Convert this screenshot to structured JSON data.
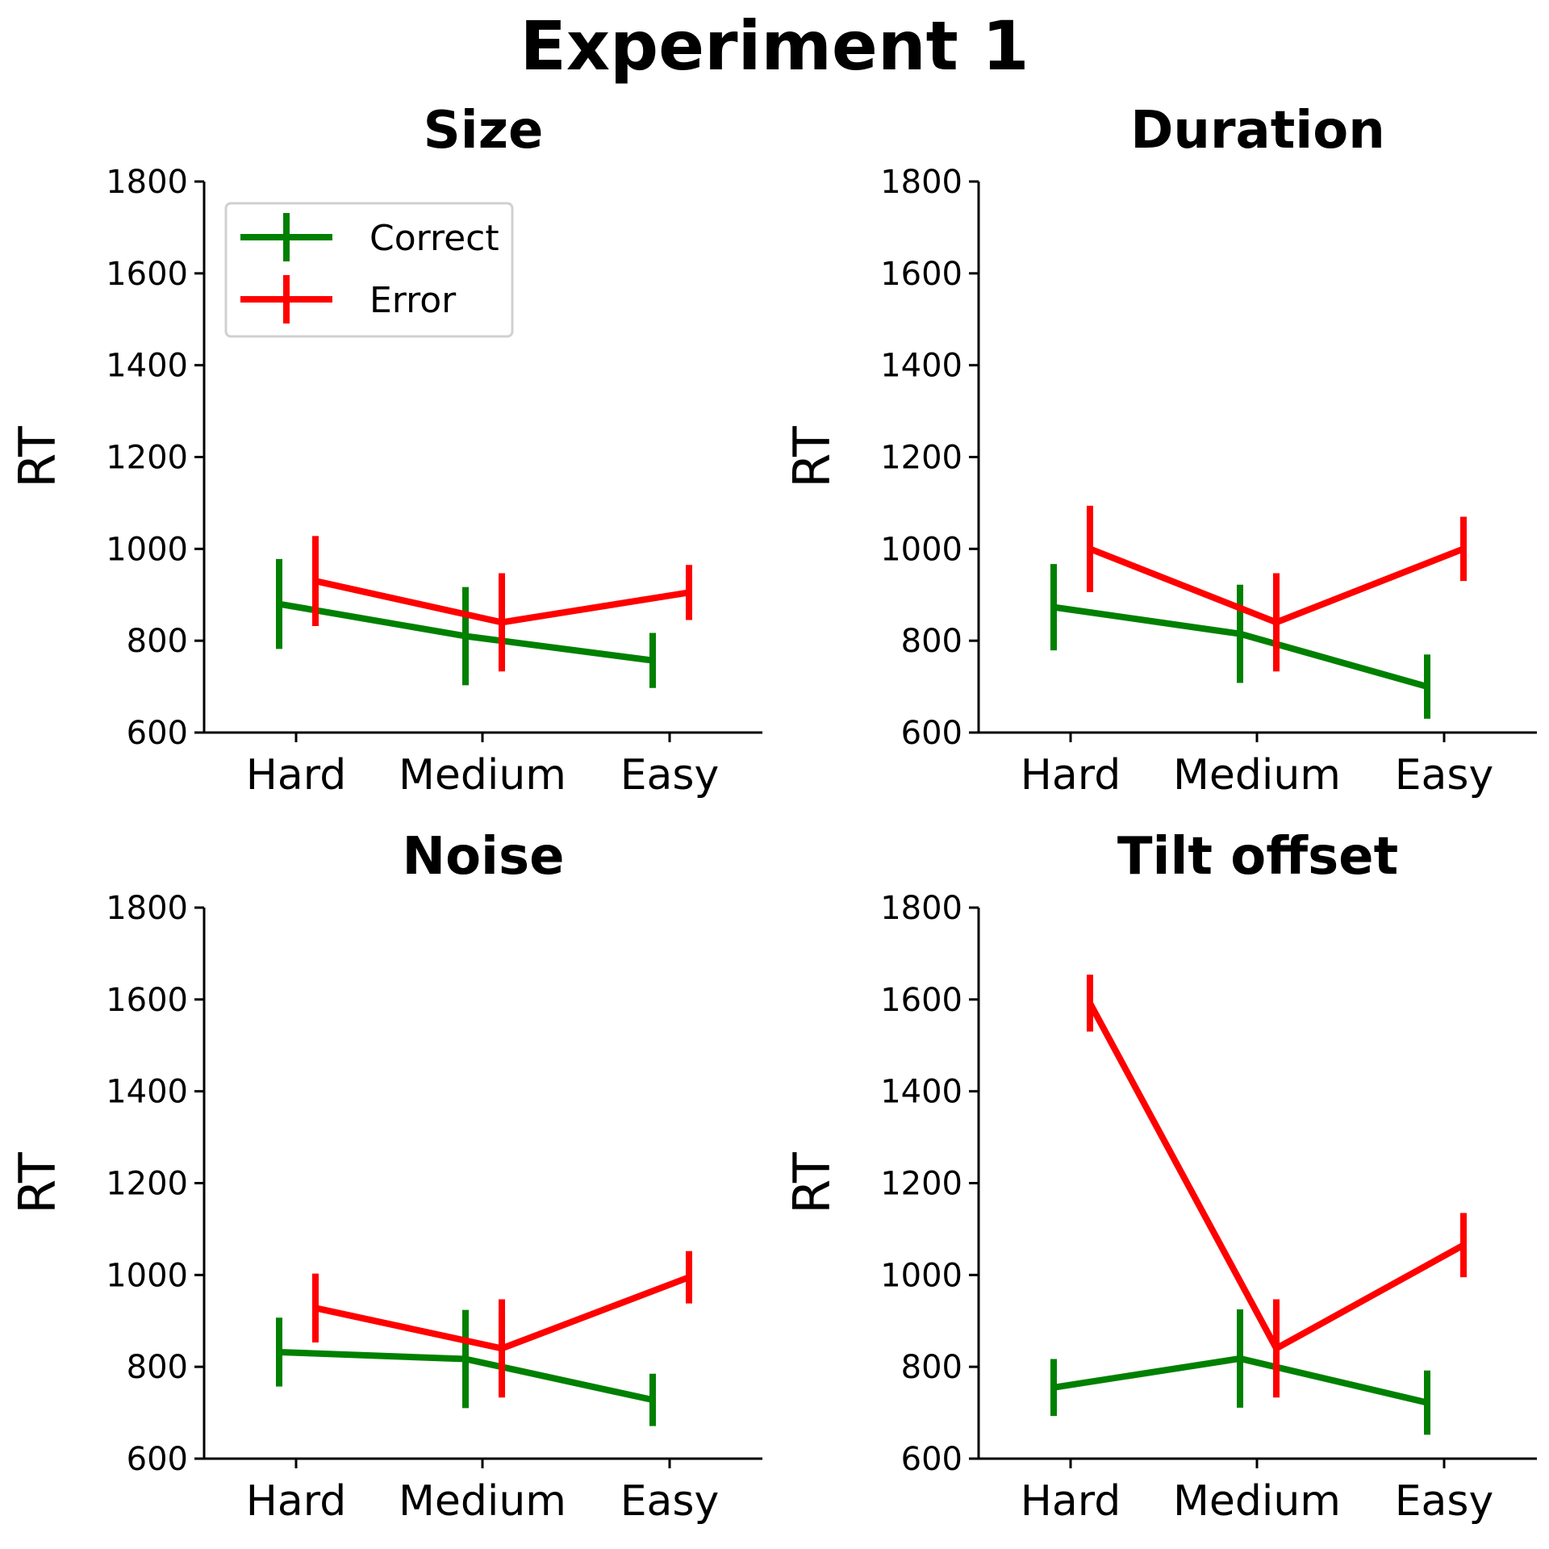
{
  "figure_title": "Experiment 1",
  "colors": {
    "Correct": "#008000",
    "Error": "#ff0000"
  },
  "chart_data": [
    {
      "type": "line",
      "title": "Size",
      "xlabel": "",
      "ylabel": "RT",
      "categories": [
        "Hard",
        "Medium",
        "Easy"
      ],
      "ylim": [
        600,
        1800
      ],
      "yticks": [
        "600",
        "800",
        "1000",
        "1200",
        "1400",
        "1600",
        "1800"
      ],
      "legend": {
        "placement": "upper-left",
        "entries": [
          "Correct",
          "Error"
        ]
      },
      "series": [
        {
          "name": "Correct",
          "values": [
            880,
            810,
            757
          ],
          "errors": [
            98,
            107,
            60
          ]
        },
        {
          "name": "Error",
          "values": [
            930,
            840,
            905
          ],
          "errors": [
            98,
            107,
            60
          ]
        }
      ]
    },
    {
      "type": "line",
      "title": "Duration",
      "xlabel": "",
      "ylabel": "RT",
      "categories": [
        "Hard",
        "Medium",
        "Easy"
      ],
      "ylim": [
        600,
        1800
      ],
      "yticks": [
        "600",
        "800",
        "1000",
        "1200",
        "1400",
        "1600",
        "1800"
      ],
      "series": [
        {
          "name": "Correct",
          "values": [
            873,
            815,
            700
          ],
          "errors": [
            94,
            107,
            70
          ]
        },
        {
          "name": "Error",
          "values": [
            1000,
            840,
            1000
          ],
          "errors": [
            94,
            107,
            70
          ]
        }
      ]
    },
    {
      "type": "line",
      "title": "Noise",
      "xlabel": "",
      "ylabel": "RT",
      "categories": [
        "Hard",
        "Medium",
        "Easy"
      ],
      "ylim": [
        600,
        1800
      ],
      "yticks": [
        "600",
        "800",
        "1000",
        "1200",
        "1400",
        "1600",
        "1800"
      ],
      "series": [
        {
          "name": "Correct",
          "values": [
            832,
            817,
            728
          ],
          "errors": [
            75,
            107,
            57
          ]
        },
        {
          "name": "Error",
          "values": [
            928,
            840,
            995
          ],
          "errors": [
            75,
            107,
            57
          ]
        }
      ]
    },
    {
      "type": "line",
      "title": "Tilt offset",
      "xlabel": "",
      "ylabel": "RT",
      "categories": [
        "Hard",
        "Medium",
        "Easy"
      ],
      "ylim": [
        600,
        1800
      ],
      "yticks": [
        "600",
        "800",
        "1000",
        "1200",
        "1400",
        "1600",
        "1800"
      ],
      "series": [
        {
          "name": "Correct",
          "values": [
            755,
            818,
            722
          ],
          "errors": [
            62,
            107,
            70
          ]
        },
        {
          "name": "Error",
          "values": [
            1592,
            840,
            1065
          ],
          "errors": [
            62,
            107,
            70
          ]
        }
      ]
    }
  ]
}
